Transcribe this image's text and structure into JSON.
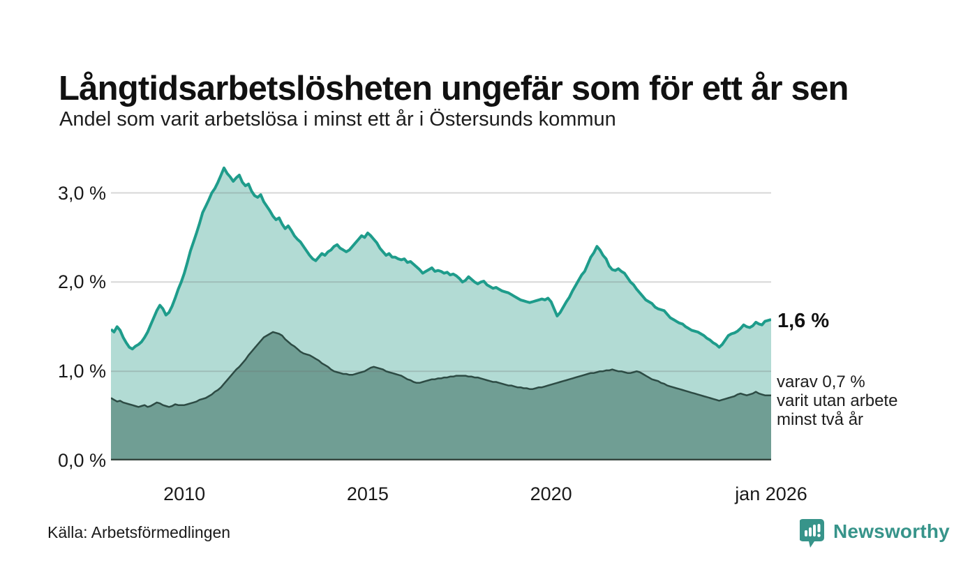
{
  "header": {
    "title": "Långtidsarbetslösheten ungefär som för ett år sen",
    "subtitle": "Andel som varit arbetslösa i minst ett år i Östersunds kommun"
  },
  "chart_data": {
    "type": "area",
    "title": "Långtidsarbetslösheten ungefär som för ett år sen",
    "subtitle": "Andel som varit arbetslösa i minst ett år i Östersunds kommun",
    "unit": "%",
    "x_start_year": 2008,
    "x_step_months": 1,
    "xlim": [
      2008,
      2026
    ],
    "ylim": [
      0,
      3.45
    ],
    "grid": "horizontal",
    "y_ticks": [
      {
        "value": 0,
        "label": "0,0 %"
      },
      {
        "value": 1,
        "label": "1,0 %"
      },
      {
        "value": 2,
        "label": "2,0 %"
      },
      {
        "value": 3,
        "label": "3,0 %"
      }
    ],
    "x_ticks": [
      {
        "year": 2010,
        "label": "2010"
      },
      {
        "year": 2015,
        "label": "2015"
      },
      {
        "year": 2020,
        "label": "2020"
      },
      {
        "year": 2026,
        "label": "jan 2026"
      }
    ],
    "series": [
      {
        "name": "arbetslosa-minst-ett-ar",
        "end_value_label": "1,6 %",
        "values": [
          1.47,
          1.44,
          1.5,
          1.46,
          1.38,
          1.32,
          1.27,
          1.25,
          1.28,
          1.3,
          1.33,
          1.38,
          1.44,
          1.52,
          1.6,
          1.68,
          1.74,
          1.7,
          1.63,
          1.66,
          1.73,
          1.82,
          1.92,
          2.0,
          2.1,
          2.22,
          2.35,
          2.45,
          2.55,
          2.66,
          2.78,
          2.85,
          2.92,
          3.0,
          3.05,
          3.12,
          3.2,
          3.28,
          3.22,
          3.18,
          3.13,
          3.17,
          3.2,
          3.12,
          3.08,
          3.1,
          3.02,
          2.97,
          2.95,
          2.98,
          2.9,
          2.85,
          2.8,
          2.74,
          2.7,
          2.72,
          2.65,
          2.6,
          2.63,
          2.58,
          2.52,
          2.48,
          2.45,
          2.4,
          2.35,
          2.3,
          2.26,
          2.24,
          2.28,
          2.32,
          2.3,
          2.34,
          2.36,
          2.4,
          2.42,
          2.38,
          2.36,
          2.34,
          2.36,
          2.4,
          2.44,
          2.48,
          2.52,
          2.5,
          2.55,
          2.52,
          2.48,
          2.44,
          2.38,
          2.34,
          2.3,
          2.32,
          2.28,
          2.28,
          2.26,
          2.25,
          2.26,
          2.22,
          2.23,
          2.2,
          2.17,
          2.14,
          2.1,
          2.12,
          2.14,
          2.16,
          2.12,
          2.13,
          2.12,
          2.1,
          2.11,
          2.08,
          2.09,
          2.07,
          2.04,
          2.0,
          2.02,
          2.06,
          2.03,
          2.0,
          1.98,
          2.0,
          2.01,
          1.97,
          1.95,
          1.93,
          1.94,
          1.92,
          1.9,
          1.89,
          1.88,
          1.86,
          1.84,
          1.82,
          1.8,
          1.79,
          1.78,
          1.77,
          1.78,
          1.79,
          1.8,
          1.81,
          1.8,
          1.82,
          1.78,
          1.7,
          1.62,
          1.66,
          1.72,
          1.78,
          1.83,
          1.9,
          1.96,
          2.02,
          2.08,
          2.12,
          2.2,
          2.28,
          2.33,
          2.4,
          2.36,
          2.3,
          2.26,
          2.18,
          2.14,
          2.13,
          2.15,
          2.12,
          2.1,
          2.05,
          2.0,
          1.97,
          1.92,
          1.88,
          1.84,
          1.8,
          1.78,
          1.76,
          1.72,
          1.7,
          1.69,
          1.68,
          1.64,
          1.6,
          1.58,
          1.56,
          1.54,
          1.53,
          1.5,
          1.48,
          1.46,
          1.45,
          1.44,
          1.42,
          1.4,
          1.37,
          1.35,
          1.32,
          1.3,
          1.27,
          1.3,
          1.35,
          1.4,
          1.42,
          1.43,
          1.45,
          1.48,
          1.52,
          1.5,
          1.49,
          1.51,
          1.55,
          1.53,
          1.52,
          1.56,
          1.57,
          1.58
        ]
      },
      {
        "name": "utan-arbete-minst-tva-ar",
        "end_value_label": "0,7 %",
        "values": [
          0.7,
          0.68,
          0.66,
          0.67,
          0.65,
          0.64,
          0.63,
          0.62,
          0.61,
          0.6,
          0.61,
          0.62,
          0.6,
          0.61,
          0.63,
          0.65,
          0.64,
          0.62,
          0.61,
          0.6,
          0.61,
          0.63,
          0.62,
          0.62,
          0.62,
          0.63,
          0.64,
          0.65,
          0.66,
          0.68,
          0.69,
          0.7,
          0.72,
          0.74,
          0.77,
          0.79,
          0.82,
          0.86,
          0.9,
          0.94,
          0.98,
          1.02,
          1.05,
          1.09,
          1.13,
          1.18,
          1.22,
          1.26,
          1.3,
          1.34,
          1.38,
          1.4,
          1.42,
          1.44,
          1.43,
          1.42,
          1.4,
          1.36,
          1.33,
          1.3,
          1.28,
          1.25,
          1.22,
          1.2,
          1.19,
          1.18,
          1.16,
          1.14,
          1.12,
          1.09,
          1.07,
          1.05,
          1.02,
          1.0,
          0.99,
          0.98,
          0.97,
          0.97,
          0.96,
          0.96,
          0.97,
          0.98,
          0.99,
          1.0,
          1.02,
          1.04,
          1.05,
          1.04,
          1.03,
          1.02,
          1.0,
          0.99,
          0.98,
          0.97,
          0.96,
          0.95,
          0.93,
          0.91,
          0.9,
          0.88,
          0.87,
          0.87,
          0.88,
          0.89,
          0.9,
          0.91,
          0.91,
          0.92,
          0.92,
          0.93,
          0.93,
          0.94,
          0.94,
          0.95,
          0.95,
          0.95,
          0.95,
          0.94,
          0.94,
          0.93,
          0.93,
          0.92,
          0.91,
          0.9,
          0.89,
          0.88,
          0.88,
          0.87,
          0.86,
          0.85,
          0.84,
          0.84,
          0.83,
          0.82,
          0.82,
          0.81,
          0.81,
          0.8,
          0.8,
          0.81,
          0.82,
          0.82,
          0.83,
          0.84,
          0.85,
          0.86,
          0.87,
          0.88,
          0.89,
          0.9,
          0.91,
          0.92,
          0.93,
          0.94,
          0.95,
          0.96,
          0.97,
          0.98,
          0.98,
          0.99,
          1.0,
          1.0,
          1.01,
          1.01,
          1.02,
          1.01,
          1.0,
          1.0,
          0.99,
          0.98,
          0.98,
          0.99,
          1.0,
          0.99,
          0.97,
          0.95,
          0.93,
          0.91,
          0.9,
          0.89,
          0.87,
          0.86,
          0.84,
          0.83,
          0.82,
          0.81,
          0.8,
          0.79,
          0.78,
          0.77,
          0.76,
          0.75,
          0.74,
          0.73,
          0.72,
          0.71,
          0.7,
          0.69,
          0.68,
          0.67,
          0.68,
          0.69,
          0.7,
          0.71,
          0.72,
          0.74,
          0.75,
          0.74,
          0.73,
          0.74,
          0.75,
          0.77,
          0.75,
          0.74,
          0.73,
          0.73,
          0.73
        ]
      }
    ]
  },
  "annotations": {
    "total_end_label": "1,6 %",
    "secondary_lines": [
      "varav 0,7 %",
      "varit utan arbete",
      "minst två år"
    ]
  },
  "footer": {
    "source": "Källa: Arbetsförmedlingen",
    "brand": "Newsworthy"
  },
  "colors": {
    "accent_line": "#1e9c8b",
    "accent_fill": "#b2dbd4",
    "secondary_fill": "#709e94",
    "secondary_line": "#2d4b44",
    "grid_overlay": "rgba(110,110,110,0.28)",
    "axis": "#36453f",
    "text": "#1a1a1a",
    "brand": "#37948a"
  }
}
